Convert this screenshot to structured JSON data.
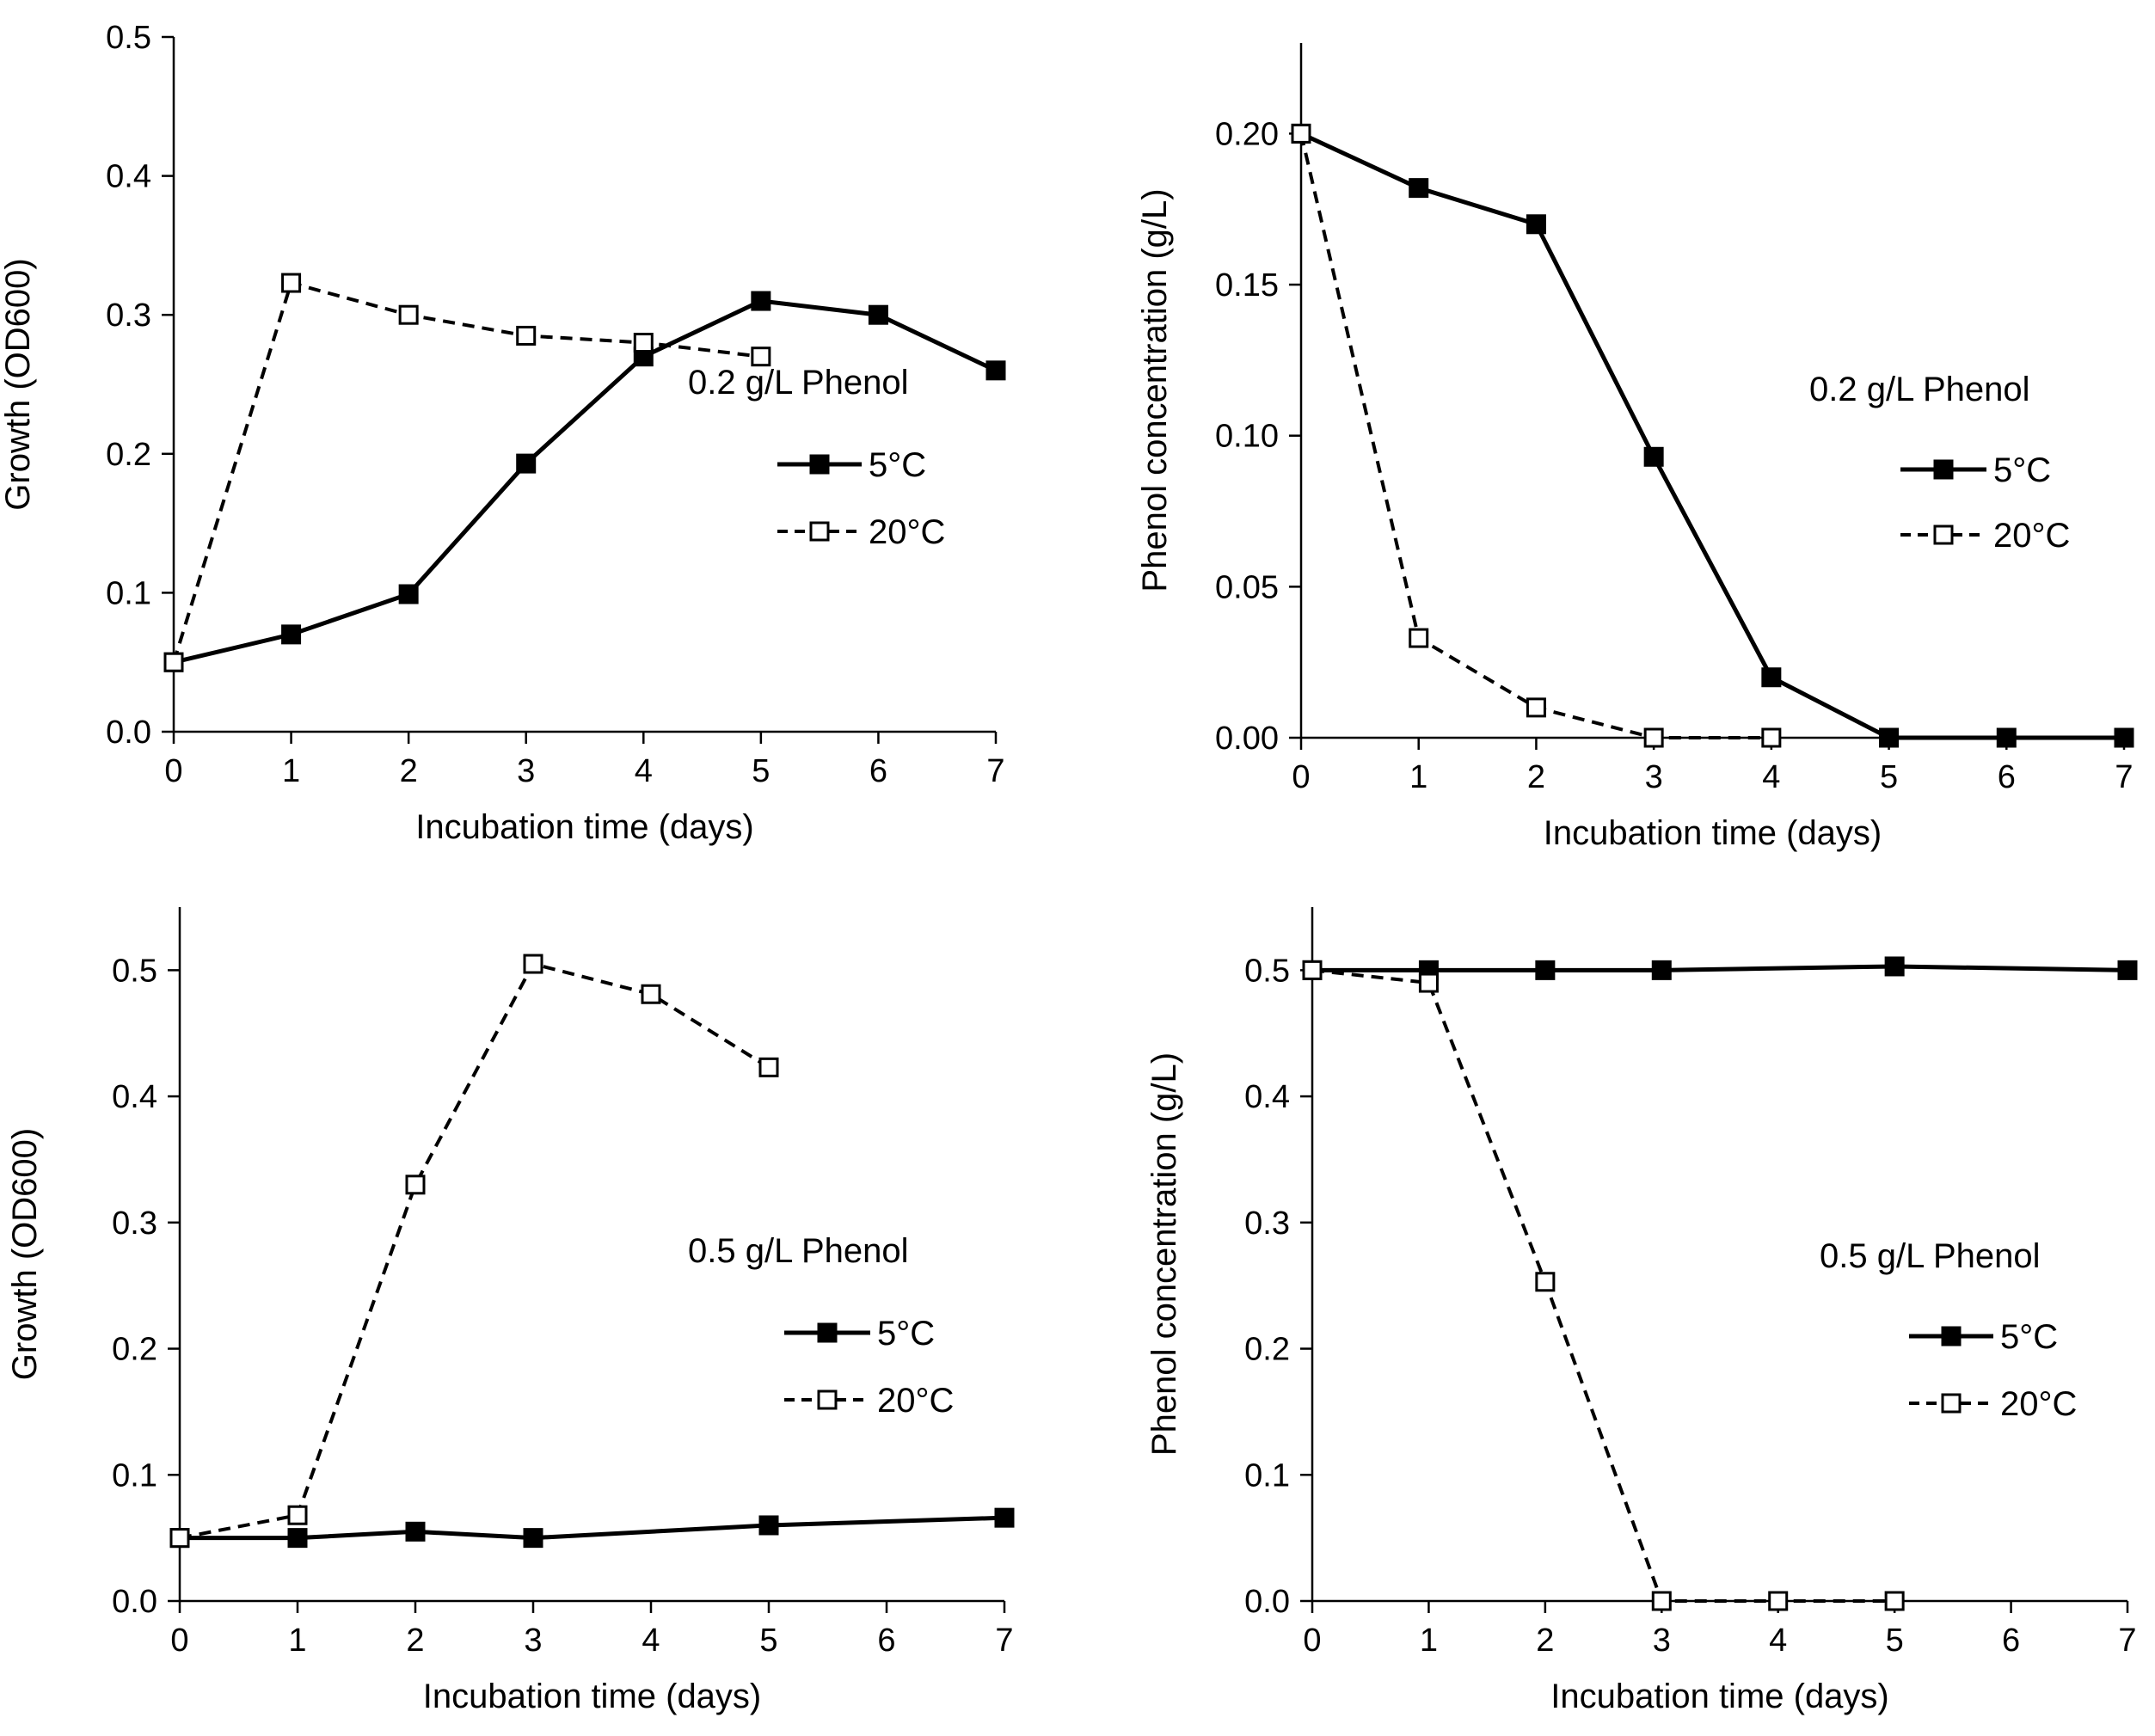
{
  "figure": {
    "colors": {
      "axis": "#000000",
      "line": "#000000",
      "marker_filled": "#000000",
      "marker_open": "#ffffff"
    }
  },
  "chart_data": [
    {
      "type": "line",
      "title": "",
      "annotation": "0.2 g/L Phenol",
      "xlabel": "Incubation time (days)",
      "ylabel": "Growth (OD600)",
      "xlim": [
        0,
        7
      ],
      "ylim": [
        0,
        0.5
      ],
      "xticks": [
        "0",
        "1",
        "2",
        "3",
        "4",
        "5",
        "6",
        "7"
      ],
      "yticks": [
        "0.0",
        "0.1",
        "0.2",
        "0.3",
        "0.4",
        "0.5"
      ],
      "legend_position": "right",
      "series": [
        {
          "name": "5°C",
          "style": "solid-filled",
          "x": [
            0,
            1,
            2,
            3,
            4,
            5,
            6,
            7
          ],
          "values": [
            0.05,
            0.07,
            0.099,
            0.193,
            0.27,
            0.31,
            0.3,
            0.26
          ]
        },
        {
          "name": "20°C",
          "style": "dashed-open",
          "x": [
            0,
            1,
            2,
            3,
            4,
            5
          ],
          "values": [
            0.05,
            0.323,
            0.3,
            0.285,
            0.28,
            0.27
          ]
        }
      ]
    },
    {
      "type": "line",
      "title": "",
      "annotation": "0.2 g/L Phenol",
      "xlabel": "Incubation time (days)",
      "ylabel": "Phenol concentration (g/L)",
      "xlim": [
        0,
        7
      ],
      "ylim": [
        0,
        0.23
      ],
      "xticks": [
        "0",
        "1",
        "2",
        "3",
        "4",
        "5",
        "6",
        "7"
      ],
      "yticks": [
        "0.00",
        "0.05",
        "0.10",
        "0.15",
        "0.20"
      ],
      "legend_position": "right",
      "series": [
        {
          "name": "5°C",
          "style": "solid-filled",
          "x": [
            0,
            1,
            2,
            3,
            4,
            5,
            6,
            7
          ],
          "values": [
            0.2,
            0.182,
            0.17,
            0.093,
            0.02,
            0.0,
            0.0,
            0.0
          ]
        },
        {
          "name": "20°C",
          "style": "dashed-open",
          "x": [
            0,
            1,
            2,
            3,
            4
          ],
          "values": [
            0.2,
            0.033,
            0.01,
            0.0,
            0.0
          ]
        }
      ]
    },
    {
      "type": "line",
      "title": "",
      "annotation": "0.5 g/L Phenol",
      "xlabel": "Incubation time (days)",
      "ylabel": "Growth (OD600)",
      "xlim": [
        0,
        7
      ],
      "ylim": [
        0,
        0.55
      ],
      "xticks": [
        "0",
        "1",
        "2",
        "3",
        "4",
        "5",
        "6",
        "7"
      ],
      "yticks": [
        "0.0",
        "0.1",
        "0.2",
        "0.3",
        "0.4",
        "0.5"
      ],
      "legend_position": "right",
      "series": [
        {
          "name": "5°C",
          "style": "solid-filled",
          "x": [
            0,
            1,
            2,
            3,
            5,
            7
          ],
          "values": [
            0.05,
            0.05,
            0.055,
            0.05,
            0.06,
            0.066
          ]
        },
        {
          "name": "20°C",
          "style": "dashed-open",
          "x": [
            0,
            1,
            2,
            3,
            4,
            5
          ],
          "values": [
            0.05,
            0.068,
            0.33,
            0.505,
            0.481,
            0.423
          ]
        }
      ]
    },
    {
      "type": "line",
      "title": "",
      "annotation": "0.5 g/L Phenol",
      "xlabel": "Incubation time (days)",
      "ylabel": "Phenol concentration (g/L)",
      "xlim": [
        0,
        7
      ],
      "ylim": [
        0,
        0.55
      ],
      "xticks": [
        "0",
        "1",
        "2",
        "3",
        "4",
        "5",
        "6",
        "7"
      ],
      "yticks": [
        "0.0",
        "0.1",
        "0.2",
        "0.3",
        "0.4",
        "0.5"
      ],
      "legend_position": "right",
      "series": [
        {
          "name": "5°C",
          "style": "solid-filled",
          "x": [
            0,
            1,
            2,
            3,
            5,
            7
          ],
          "values": [
            0.5,
            0.5,
            0.5,
            0.5,
            0.503,
            0.5
          ]
        },
        {
          "name": "20°C",
          "style": "dashed-open",
          "x": [
            0,
            1,
            2,
            3,
            4,
            5
          ],
          "values": [
            0.5,
            0.49,
            0.253,
            0.0,
            0.0,
            0.0
          ]
        }
      ]
    }
  ]
}
